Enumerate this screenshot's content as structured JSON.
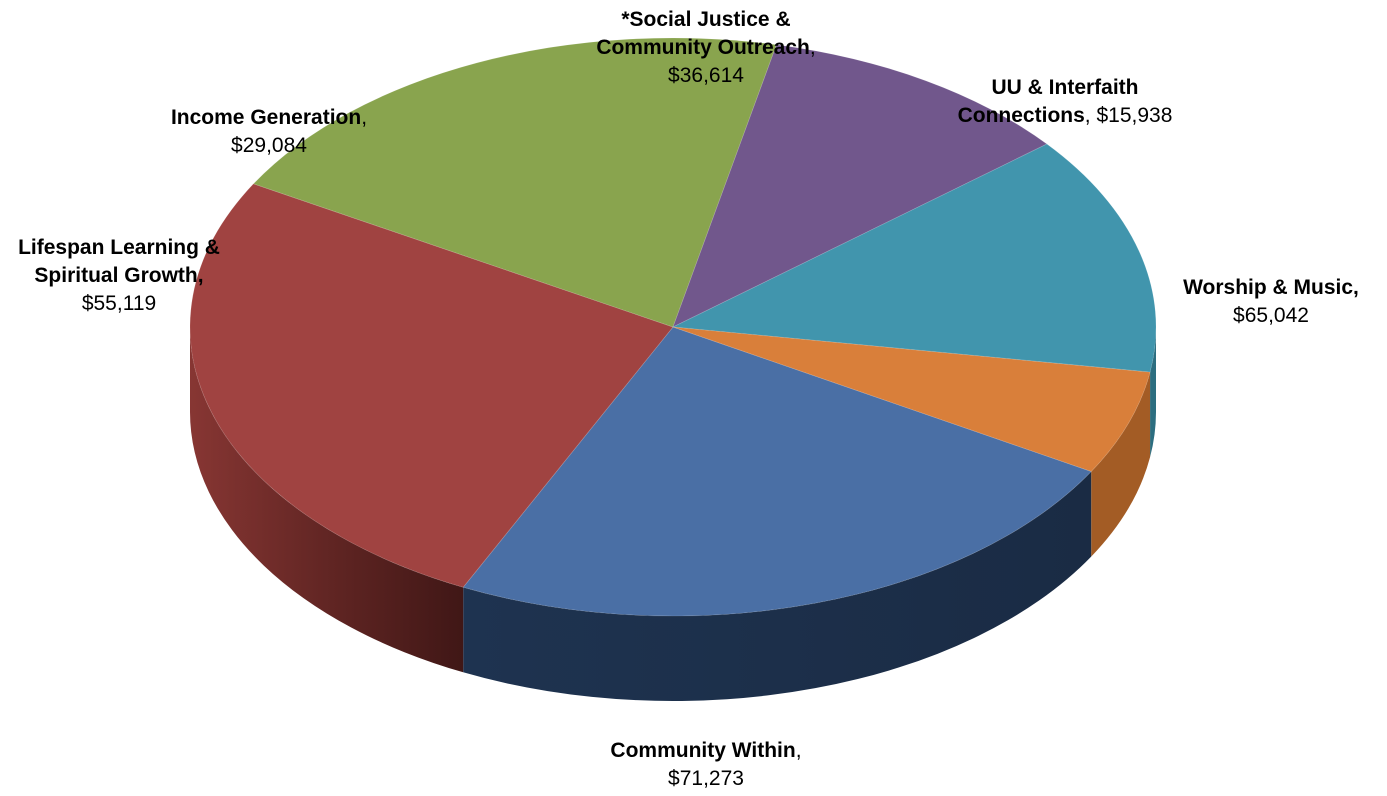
{
  "chart_data": {
    "type": "pie",
    "style": "3d",
    "title": "",
    "slices": [
      {
        "name": "Worship & Music,",
        "value_label": "$65,042",
        "value": 65042,
        "color": "#4A6FA5",
        "side_color": "#1C2E4A"
      },
      {
        "name": "Community Within",
        "value_label": "$71,273",
        "value": 71273,
        "color": "#A04341",
        "side_color": "#6E2826"
      },
      {
        "name": "Lifespan Learning & Spiritual Growth,",
        "value_label": "$55,119",
        "value": 55119,
        "color": "#89A44E",
        "side_color": "#6C853A"
      },
      {
        "name": "Income Generation",
        "value_label": "$29,084",
        "value": 29084,
        "color": "#71578C",
        "side_color": "#4E3D63"
      },
      {
        "name": "*Social Justice & Community Outreach",
        "value_label": "$36,614",
        "value": 36614,
        "color": "#4195AD",
        "side_color": "#2C6E80"
      },
      {
        "name": "UU & Interfaith Connections",
        "value_label": "$15,938",
        "value": 15938,
        "color": "#D97F3A",
        "side_color": "#A35C25"
      }
    ]
  },
  "labels": {
    "worship": {
      "line1": "Worship & Music,",
      "line2": "$65,042"
    },
    "community": {
      "line1": "Community Within",
      "sep": ",",
      "line2": "$71,273"
    },
    "lifespan": {
      "line1": "Lifespan Learning &",
      "line2": "Spiritual Growth,",
      "line3": "$55,119"
    },
    "income": {
      "line1": "Income Generation",
      "sep": ",",
      "line2": "$29,084"
    },
    "social": {
      "line1": "*Social Justice &",
      "line2": "Community Outreach",
      "sep": ",",
      "line3": "$36,614"
    },
    "uu": {
      "line1": "UU & Interfaith",
      "line2": "Connections",
      "sep": ",",
      "value": "$15,938"
    }
  }
}
